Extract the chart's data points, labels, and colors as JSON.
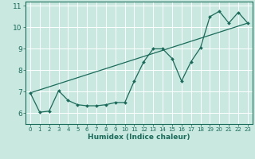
{
  "title": "",
  "xlabel": "Humidex (Indice chaleur)",
  "ylabel": "",
  "bg_color": "#c8e8e0",
  "grid_color": "#ffffff",
  "line_color": "#1a6b5a",
  "xlim": [
    -0.5,
    23.5
  ],
  "ylim": [
    5.5,
    11.2
  ],
  "xticks": [
    0,
    1,
    2,
    3,
    4,
    5,
    6,
    7,
    8,
    9,
    10,
    11,
    12,
    13,
    14,
    15,
    16,
    17,
    18,
    19,
    20,
    21,
    22,
    23
  ],
  "yticks": [
    6,
    7,
    8,
    9,
    10,
    11
  ],
  "data_x": [
    0,
    1,
    2,
    3,
    4,
    5,
    6,
    7,
    8,
    9,
    10,
    11,
    12,
    13,
    14,
    15,
    16,
    17,
    18,
    19,
    20,
    21,
    22,
    23
  ],
  "data_y": [
    6.95,
    6.05,
    6.1,
    7.05,
    6.6,
    6.4,
    6.35,
    6.35,
    6.4,
    6.5,
    6.5,
    7.5,
    8.4,
    9.0,
    9.0,
    8.55,
    7.5,
    8.4,
    9.05,
    10.5,
    10.75,
    10.2,
    10.7,
    10.2
  ],
  "trend_x": [
    0,
    23
  ],
  "trend_y": [
    6.95,
    10.2
  ]
}
